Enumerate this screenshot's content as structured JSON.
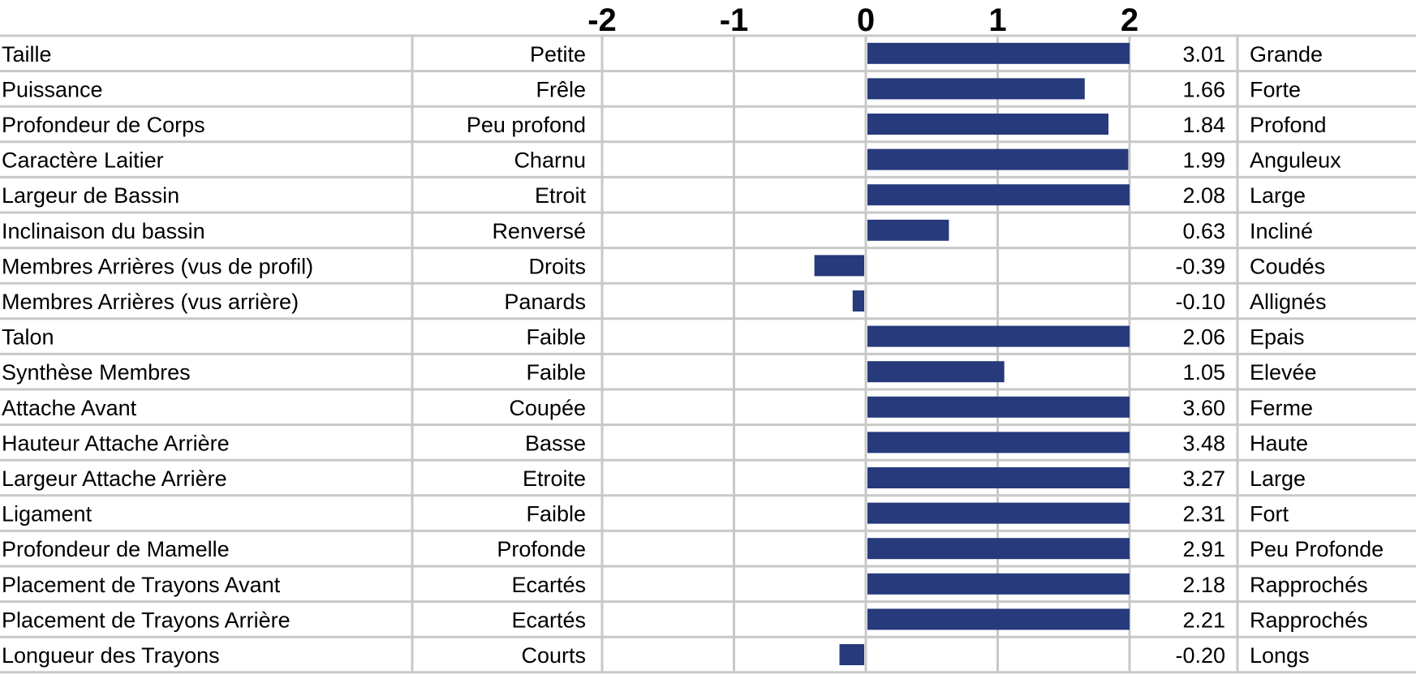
{
  "chart_data": {
    "type": "bar",
    "orientation": "horizontal",
    "xlim": [
      -2,
      2
    ],
    "x_ticks": [
      -2,
      -1,
      0,
      1,
      2
    ],
    "bar_color": "#263a7c",
    "grid": true,
    "rows": [
      {
        "trait": "Taille",
        "low": "Petite",
        "value": 3.01,
        "value_label": "3.01",
        "high": "Grande"
      },
      {
        "trait": "Puissance",
        "low": "Frêle",
        "value": 1.66,
        "value_label": "1.66",
        "high": "Forte"
      },
      {
        "trait": "Profondeur de Corps",
        "low": "Peu profond",
        "value": 1.84,
        "value_label": "1.84",
        "high": "Profond"
      },
      {
        "trait": "Caractère Laitier",
        "low": "Charnu",
        "value": 1.99,
        "value_label": "1.99",
        "high": "Anguleux"
      },
      {
        "trait": "Largeur de Bassin",
        "low": "Etroit",
        "value": 2.08,
        "value_label": "2.08",
        "high": "Large"
      },
      {
        "trait": "Inclinaison du bassin",
        "low": "Renversé",
        "value": 0.63,
        "value_label": "0.63",
        "high": "Incliné"
      },
      {
        "trait": "Membres Arrières (vus de profil)",
        "low": "Droits",
        "value": -0.39,
        "value_label": "-0.39",
        "high": "Coudés"
      },
      {
        "trait": "Membres Arrières (vus arrière)",
        "low": "Panards",
        "value": -0.1,
        "value_label": "-0.10",
        "high": "Allignés"
      },
      {
        "trait": "Talon",
        "low": "Faible",
        "value": 2.06,
        "value_label": "2.06",
        "high": "Epais"
      },
      {
        "trait": "Synthèse Membres",
        "low": "Faible",
        "value": 1.05,
        "value_label": "1.05",
        "high": "Elevée"
      },
      {
        "trait": "Attache Avant",
        "low": "Coupée",
        "value": 3.6,
        "value_label": "3.60",
        "high": "Ferme"
      },
      {
        "trait": "Hauteur Attache Arrière",
        "low": "Basse",
        "value": 3.48,
        "value_label": "3.48",
        "high": "Haute"
      },
      {
        "trait": "Largeur Attache Arrière",
        "low": "Etroite",
        "value": 3.27,
        "value_label": "3.27",
        "high": "Large"
      },
      {
        "trait": "Ligament",
        "low": "Faible",
        "value": 2.31,
        "value_label": "2.31",
        "high": "Fort"
      },
      {
        "trait": "Profondeur de Mamelle",
        "low": "Profonde",
        "value": 2.91,
        "value_label": "2.91",
        "high": "Peu Profonde"
      },
      {
        "trait": "Placement de Trayons Avant",
        "low": "Ecartés",
        "value": 2.18,
        "value_label": "2.18",
        "high": "Rapprochés"
      },
      {
        "trait": "Placement de Trayons Arrière",
        "low": "Ecartés",
        "value": 2.21,
        "value_label": "2.21",
        "high": "Rapprochés"
      },
      {
        "trait": "Longueur des Trayons",
        "low": "Courts",
        "value": -0.2,
        "value_label": "-0.20",
        "high": "Longs"
      }
    ]
  }
}
